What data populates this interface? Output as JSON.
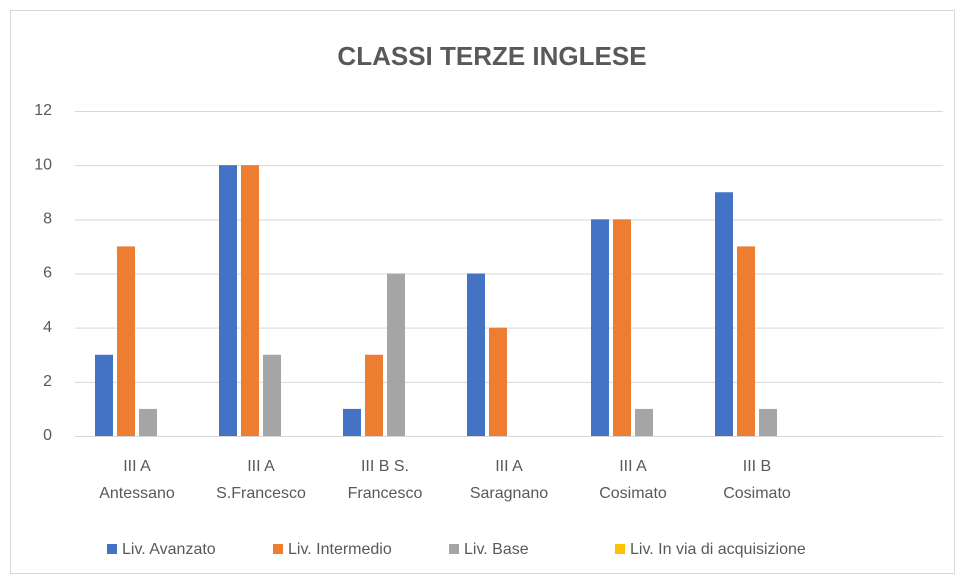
{
  "chart_data": {
    "type": "bar",
    "title": "CLASSI TERZE INGLESE",
    "categories": [
      "III A\nAntessano",
      "III A\nS.Francesco",
      "III B S.\nFrancesco",
      "III A\nSaragnano",
      "III A\nCosimato",
      "III B\nCosimato",
      null
    ],
    "series": [
      {
        "name": "Liv. Avanzato",
        "color": "#4472c4",
        "values": [
          3,
          10,
          1,
          6,
          8,
          9,
          null
        ]
      },
      {
        "name": "Liv. Intermedio",
        "color": "#ed7d31",
        "values": [
          7,
          10,
          3,
          4,
          8,
          7,
          null
        ]
      },
      {
        "name": "Liv. Base",
        "color": "#a5a5a5",
        "values": [
          1,
          3,
          6,
          0,
          1,
          1,
          null
        ]
      },
      {
        "name": "Liv. In via di acquisizione",
        "color": "#ffc000",
        "values": [
          0,
          0,
          0,
          0,
          0,
          0,
          null
        ]
      }
    ],
    "ylim": [
      0,
      12
    ],
    "yticks": [
      0,
      2,
      4,
      6,
      8,
      10,
      12
    ],
    "grid": true,
    "legend": "bottom"
  }
}
